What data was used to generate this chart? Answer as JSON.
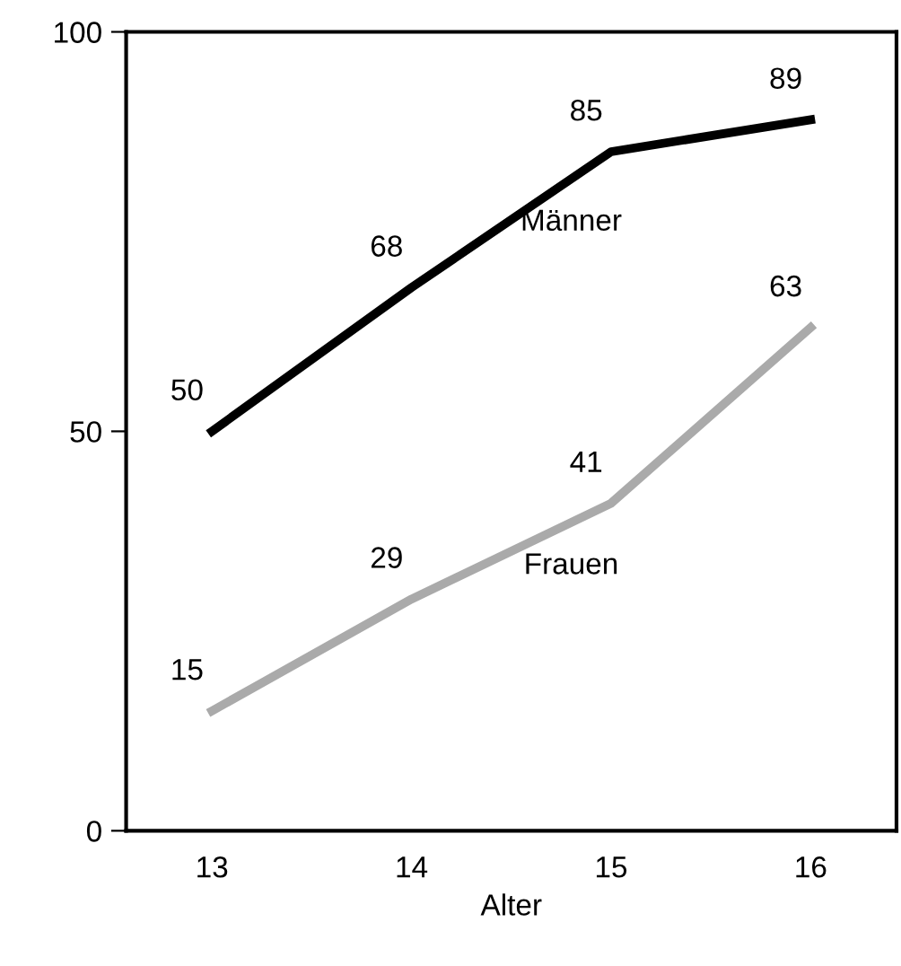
{
  "chart_data": {
    "type": "line",
    "xlabel": "Alter",
    "categories": [
      "13",
      "14",
      "15",
      "16"
    ],
    "series": [
      {
        "name": "Männer",
        "color": "#000000",
        "values": [
          50,
          68,
          85,
          89
        ]
      },
      {
        "name": "Frauen",
        "color": "#aaaaaa",
        "values": [
          15,
          29,
          41,
          63
        ]
      }
    ],
    "ylim": [
      0,
      100
    ],
    "yticks": [
      0,
      50,
      100
    ],
    "data_labels": true,
    "grid": false,
    "legend": false,
    "marker": "none",
    "line_style": "solid"
  }
}
